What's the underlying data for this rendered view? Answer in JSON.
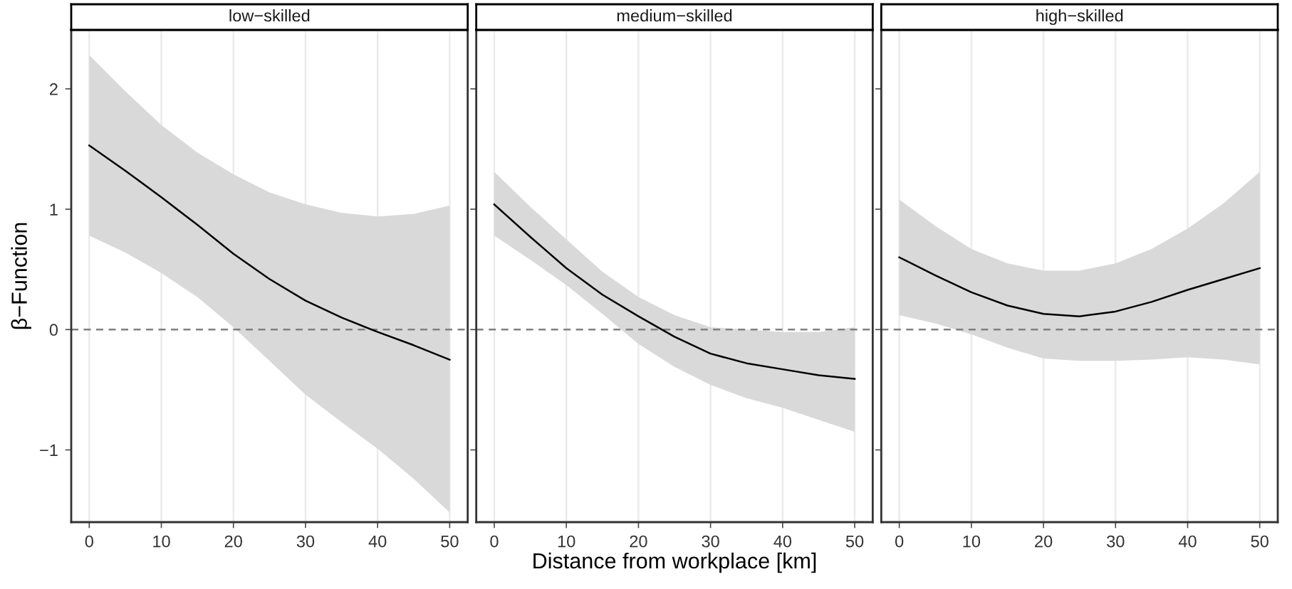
{
  "chart_data": [
    {
      "type": "line",
      "title": "low−skilled",
      "ylabel": "β−Function",
      "x": [
        0,
        5,
        10,
        15,
        20,
        25,
        30,
        35,
        40,
        45,
        50
      ],
      "series": [
        {
          "color": "#000000",
          "values": [
            1.53,
            1.32,
            1.1,
            0.87,
            0.63,
            0.42,
            0.24,
            0.1,
            -0.02,
            -0.13,
            -0.25
          ],
          "lower": [
            0.78,
            0.64,
            0.47,
            0.27,
            0.02,
            -0.26,
            -0.54,
            -0.77,
            -0.99,
            -1.24,
            -1.52
          ],
          "upper": [
            2.28,
            1.98,
            1.7,
            1.47,
            1.29,
            1.14,
            1.04,
            0.97,
            0.94,
            0.96,
            1.03
          ]
        }
      ],
      "ref_lines": [
        {
          "axis": "y",
          "value": 0,
          "color": "#808080",
          "line_style": "dashed"
        }
      ],
      "xlim": [
        -2.5,
        52.5
      ],
      "xticks": [
        0,
        10,
        20,
        30,
        40,
        50
      ],
      "ylim": [
        -1.6,
        2.49
      ],
      "yticks": [
        {
          "value": -1,
          "label": "−1"
        },
        0,
        1,
        2
      ],
      "grid": "x"
    },
    {
      "type": "line",
      "title": "medium−skilled",
      "xlabel": "Distance from workplace [km]",
      "x": [
        0,
        5,
        10,
        15,
        20,
        25,
        30,
        35,
        40,
        45,
        50
      ],
      "series": [
        {
          "color": "#000000",
          "values": [
            1.04,
            0.77,
            0.51,
            0.29,
            0.11,
            -0.06,
            -0.2,
            -0.28,
            -0.33,
            -0.38,
            -0.41
          ],
          "lower": [
            0.78,
            0.58,
            0.37,
            0.13,
            -0.12,
            -0.31,
            -0.46,
            -0.57,
            -0.65,
            -0.75,
            -0.85
          ],
          "upper": [
            1.31,
            1.02,
            0.75,
            0.48,
            0.27,
            0.12,
            0.02,
            0.0,
            -0.02,
            -0.02,
            0.02
          ]
        }
      ],
      "ref_lines": [
        {
          "axis": "y",
          "value": 0,
          "color": "#808080",
          "line_style": "dashed"
        }
      ],
      "xlim": [
        -2.5,
        52.5
      ],
      "xticks": [
        0,
        10,
        20,
        30,
        40,
        50
      ],
      "ylim": [
        -1.6,
        2.49
      ],
      "tick_labels": "x",
      "grid": "x"
    },
    {
      "type": "line",
      "title": "high−skilled",
      "x": [
        0,
        5,
        10,
        15,
        20,
        25,
        30,
        35,
        40,
        45,
        50
      ],
      "series": [
        {
          "color": "#000000",
          "values": [
            0.6,
            0.45,
            0.31,
            0.2,
            0.13,
            0.11,
            0.15,
            0.23,
            0.33,
            0.42,
            0.51
          ],
          "lower": [
            0.12,
            0.05,
            -0.04,
            -0.15,
            -0.24,
            -0.26,
            -0.26,
            -0.25,
            -0.23,
            -0.25,
            -0.29
          ],
          "upper": [
            1.08,
            0.86,
            0.67,
            0.55,
            0.49,
            0.49,
            0.55,
            0.67,
            0.84,
            1.05,
            1.31
          ]
        }
      ],
      "ref_lines": [
        {
          "axis": "y",
          "value": 0,
          "color": "#808080",
          "line_style": "dashed"
        }
      ],
      "xlim": [
        -2.5,
        52.5
      ],
      "xticks": [
        0,
        10,
        20,
        30,
        40,
        50
      ],
      "ylim": [
        -1.6,
        2.49
      ],
      "tick_labels": "x",
      "grid": "x"
    }
  ]
}
